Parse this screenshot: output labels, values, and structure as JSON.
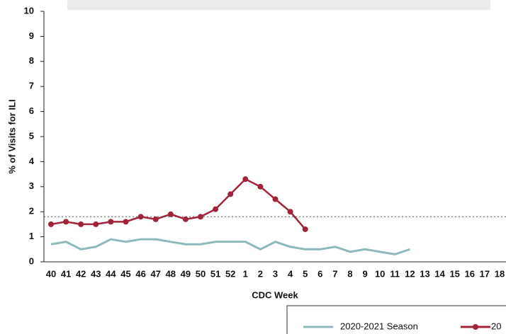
{
  "chart_data": {
    "type": "line",
    "y_label": "% of Visits for ILI",
    "x_label": "CDC Week",
    "categories": [
      "40",
      "41",
      "42",
      "43",
      "44",
      "45",
      "46",
      "47",
      "48",
      "49",
      "50",
      "51",
      "52",
      "1",
      "2",
      "3",
      "4",
      "5",
      "6",
      "7",
      "8",
      "9",
      "10",
      "11",
      "12",
      "13",
      "14",
      "15",
      "16",
      "17",
      "18"
    ],
    "series": [
      {
        "name": "2020-2021 Season",
        "color": "#8fb8bd",
        "marker": false,
        "values": [
          0.7,
          0.8,
          0.5,
          0.6,
          0.9,
          0.8,
          0.9,
          0.9,
          0.8,
          0.7,
          0.7,
          0.8,
          0.8,
          0.8,
          0.5,
          0.8,
          0.6,
          0.5,
          0.5,
          0.6,
          0.4,
          0.5,
          0.4,
          0.3,
          0.5,
          null,
          null,
          null,
          null,
          null,
          null
        ]
      },
      {
        "name": "20",
        "color": "#a0243a",
        "marker": true,
        "values": [
          1.5,
          1.6,
          1.5,
          1.5,
          1.6,
          1.6,
          1.8,
          1.7,
          1.9,
          1.7,
          1.8,
          2.1,
          2.7,
          3.3,
          3.0,
          2.5,
          2.0,
          1.3,
          null,
          null,
          null,
          null,
          null,
          null,
          null,
          null,
          null,
          null,
          null,
          null,
          null
        ]
      }
    ],
    "reference_line": 1.8,
    "ylim": [
      0,
      10
    ],
    "yticks": [
      0,
      1,
      2,
      3,
      4,
      5,
      6,
      7,
      8,
      9,
      10
    ],
    "legend": "bottom-right"
  }
}
